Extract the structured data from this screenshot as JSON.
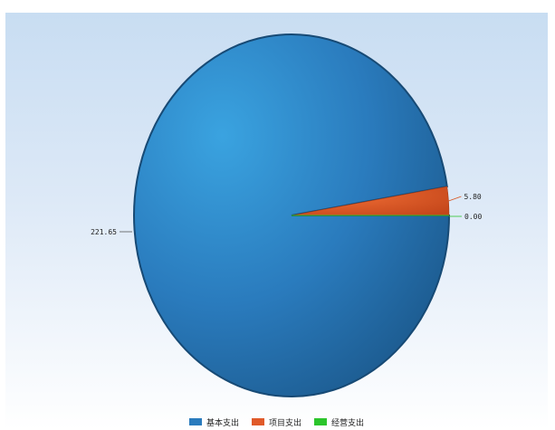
{
  "chart_data": {
    "type": "pie",
    "slices": [
      {
        "label": "221.65",
        "value": 221.65,
        "color": "#2a7bbd"
      },
      {
        "label": "5.80",
        "value": 5.8,
        "color": "#d9541e"
      },
      {
        "label": "0.00",
        "value": 0.0,
        "color": "#2cc52c"
      }
    ],
    "legend": {
      "placement": "bottom",
      "entries": [
        {
          "name": "基本支出",
          "color": "#2a7bbd"
        },
        {
          "name": "项目支出",
          "color": "#e05a2a"
        },
        {
          "name": "经营支出",
          "color": "#2cc52c"
        }
      ]
    },
    "title": ""
  }
}
